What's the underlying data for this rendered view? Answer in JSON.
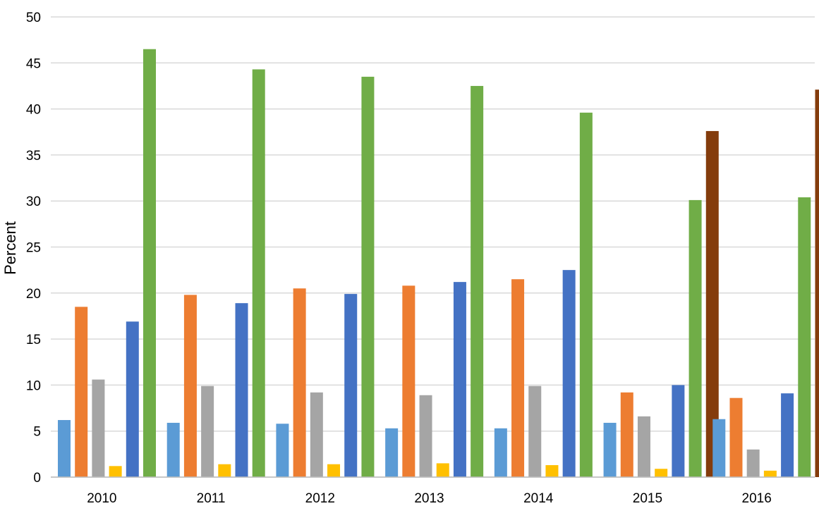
{
  "chart_data": {
    "type": "bar",
    "title": "",
    "xlabel": "",
    "ylabel": "Percent",
    "ylim": [
      0,
      50
    ],
    "yticks": [
      0,
      5,
      10,
      15,
      20,
      25,
      30,
      35,
      40,
      45,
      50
    ],
    "grid": true,
    "legend": "none",
    "categories": [
      "2010",
      "2011",
      "2012",
      "2013",
      "2014",
      "2015",
      "2016"
    ],
    "series": [
      {
        "color": "#5b9bd5",
        "values": [
          6.2,
          5.9,
          5.8,
          5.3,
          5.3,
          5.9,
          6.3
        ]
      },
      {
        "color": "#ed7d31",
        "values": [
          18.5,
          19.8,
          20.5,
          20.8,
          21.5,
          9.2,
          8.6
        ]
      },
      {
        "color": "#a5a5a5",
        "values": [
          10.6,
          9.9,
          9.2,
          8.9,
          9.9,
          6.6,
          3.0
        ]
      },
      {
        "color": "#ffc000",
        "values": [
          1.2,
          1.4,
          1.4,
          1.5,
          1.3,
          0.9,
          0.7
        ]
      },
      {
        "color": "#4472c4",
        "values": [
          16.9,
          18.9,
          19.9,
          21.2,
          22.5,
          10.0,
          9.1
        ]
      },
      {
        "color": "#70ad47",
        "values": [
          46.5,
          44.3,
          43.5,
          42.5,
          39.6,
          30.1,
          30.4
        ]
      },
      {
        "color": "#843c0c",
        "values": [
          null,
          null,
          null,
          null,
          null,
          37.6,
          42.1
        ]
      }
    ]
  }
}
